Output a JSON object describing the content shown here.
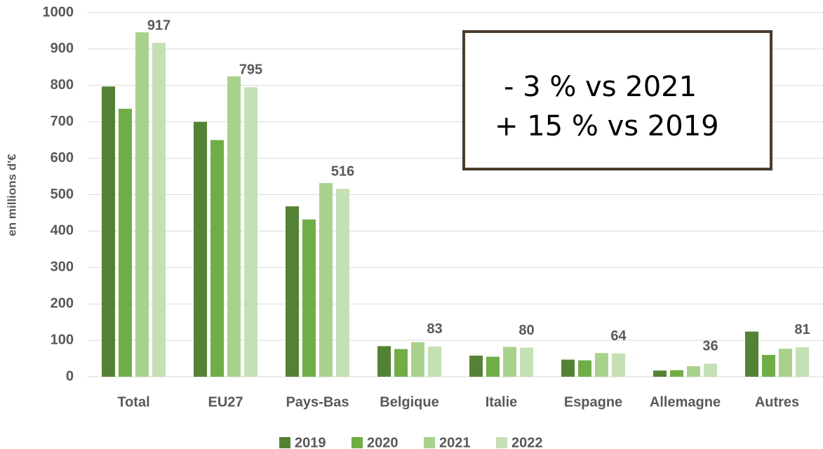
{
  "chart_data": {
    "type": "bar",
    "y_label": "en millions d'€",
    "categories": [
      "Total",
      "EU27",
      "Pays-Bas",
      "Belgique",
      "Italie",
      "Espagne",
      "Allemagne",
      "Autres"
    ],
    "series": [
      {
        "name": "2019",
        "color": "#548235",
        "values": [
          797,
          700,
          468,
          84,
          58,
          47,
          17,
          124
        ]
      },
      {
        "name": "2020",
        "color": "#70ad47",
        "values": [
          736,
          650,
          432,
          76,
          55,
          45,
          18,
          60
        ]
      },
      {
        "name": "2021",
        "color": "#a9d18e",
        "values": [
          946,
          825,
          532,
          95,
          82,
          65,
          29,
          77
        ]
      },
      {
        "name": "2022",
        "color": "#c5e0b4",
        "values": [
          917,
          795,
          516,
          83,
          80,
          64,
          36,
          81
        ],
        "show_labels": true
      }
    ],
    "ylim": [
      0,
      1000
    ],
    "yticks": [
      0,
      100,
      200,
      300,
      400,
      500,
      600,
      700,
      800,
      900,
      1000
    ],
    "grid": true,
    "legend": "bottom",
    "annotation": [
      "-   3 % vs 2021",
      "+ 15 % vs 2019"
    ]
  }
}
